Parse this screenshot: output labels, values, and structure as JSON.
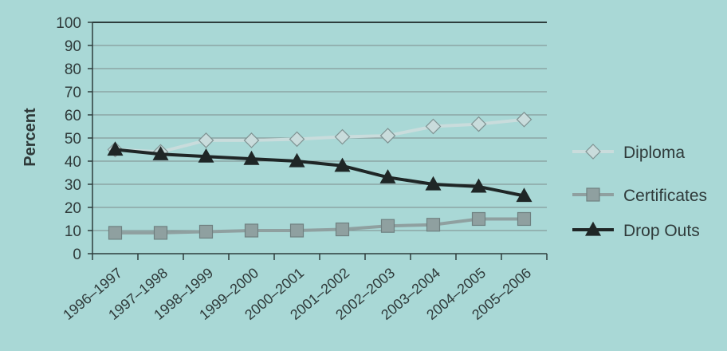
{
  "colors": {
    "background": "#a9d8d6",
    "grid": "#7d8c8c",
    "axis": "#2e3d3d",
    "text": "#2f3a3a",
    "diploma": "#c9dcdc",
    "certificates": "#8fa0a0",
    "dropouts": "#1f2626"
  },
  "chart_data": {
    "type": "line",
    "title": "",
    "xlabel": "",
    "ylabel": "Percent",
    "ylim": [
      0,
      100
    ],
    "yticks": [
      0,
      10,
      20,
      30,
      40,
      50,
      60,
      70,
      80,
      90,
      100
    ],
    "grid": true,
    "legend_position": "right",
    "categories": [
      "1996–1997",
      "1997–1998",
      "1998–1999",
      "1999–2000",
      "2000–2001",
      "2001–2002",
      "2002–2003",
      "2003–2004",
      "2004–2005",
      "2005–2006"
    ],
    "series": [
      {
        "name": "Diploma",
        "marker": "diamond",
        "values": [
          45,
          44,
          49,
          49,
          49.5,
          50.5,
          51,
          55,
          56,
          58
        ]
      },
      {
        "name": "Certificates",
        "marker": "square",
        "values": [
          9,
          9,
          9.5,
          10,
          10,
          10.5,
          12,
          12.5,
          15,
          15
        ]
      },
      {
        "name": "Drop Outs",
        "marker": "triangle",
        "values": [
          45,
          43,
          42,
          41,
          40,
          38,
          33,
          30,
          29,
          25
        ]
      }
    ]
  }
}
